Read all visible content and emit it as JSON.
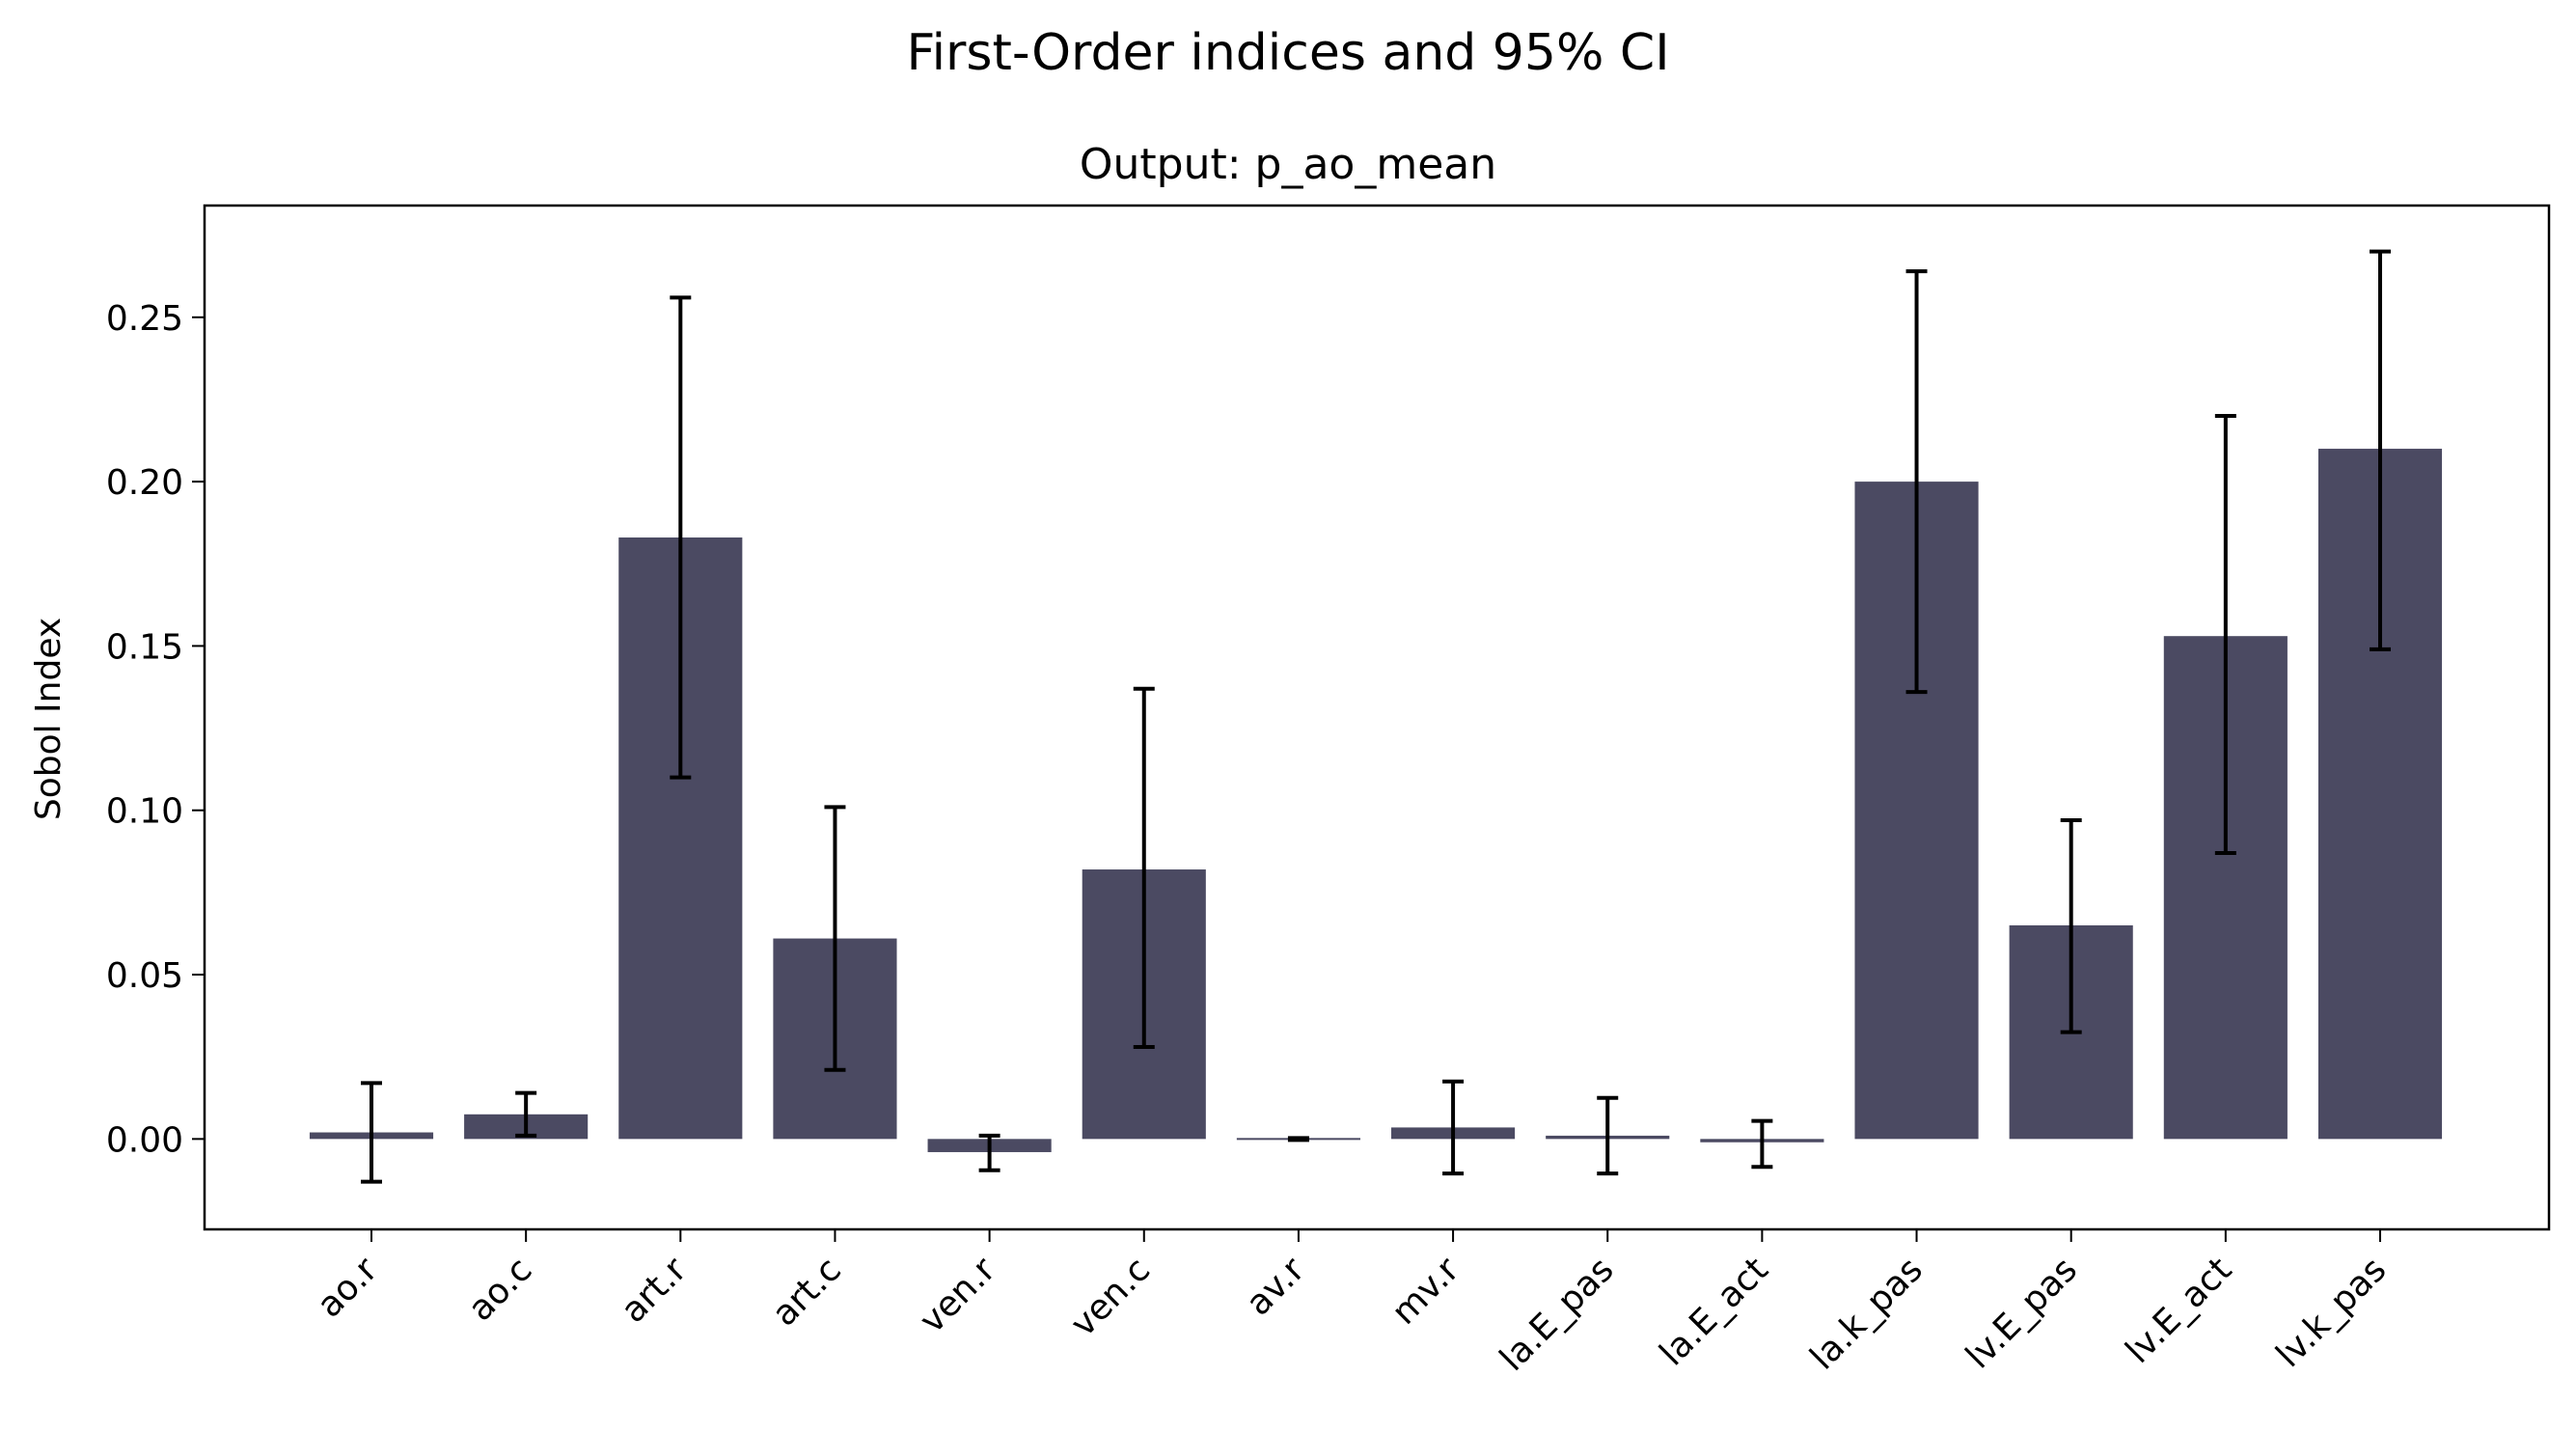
{
  "chart_data": {
    "type": "bar",
    "suptitle": "First-Order indices and 95% CI",
    "title": "Output: p_ao_mean",
    "xlabel": "",
    "ylabel": "Sobol Index",
    "categories": [
      "ao.r",
      "ao.c",
      "art.r",
      "art.c",
      "ven.r",
      "ven.c",
      "av.r",
      "mv.r",
      "la.E_pas",
      "la.E_act",
      "la.k_pas",
      "lv.E_pas",
      "lv.E_act",
      "lv.k_pas"
    ],
    "values": [
      0.002,
      0.0075,
      0.183,
      0.061,
      -0.004,
      0.082,
      0.0,
      0.0035,
      0.001,
      -0.001,
      0.2,
      0.065,
      0.153,
      0.21
    ],
    "ci_lower": [
      -0.013,
      0.001,
      0.11,
      0.021,
      -0.0095,
      0.028,
      0.0,
      -0.0105,
      -0.0105,
      -0.0085,
      0.136,
      0.0325,
      0.087,
      0.149
    ],
    "ci_upper": [
      0.017,
      0.014,
      0.256,
      0.101,
      0.001,
      0.137,
      0.0,
      0.0175,
      0.0125,
      0.0055,
      0.264,
      0.097,
      0.22,
      0.27
    ],
    "ylim": [
      -0.0275,
      0.284
    ],
    "yticks": [
      0.0,
      0.05,
      0.1,
      0.15,
      0.2,
      0.25
    ],
    "ytick_labels": [
      "0.00",
      "0.05",
      "0.10",
      "0.15",
      "0.20",
      "0.25"
    ],
    "grid": false,
    "bar_color": "#4b4a62",
    "errorbar_color": "#000000"
  }
}
